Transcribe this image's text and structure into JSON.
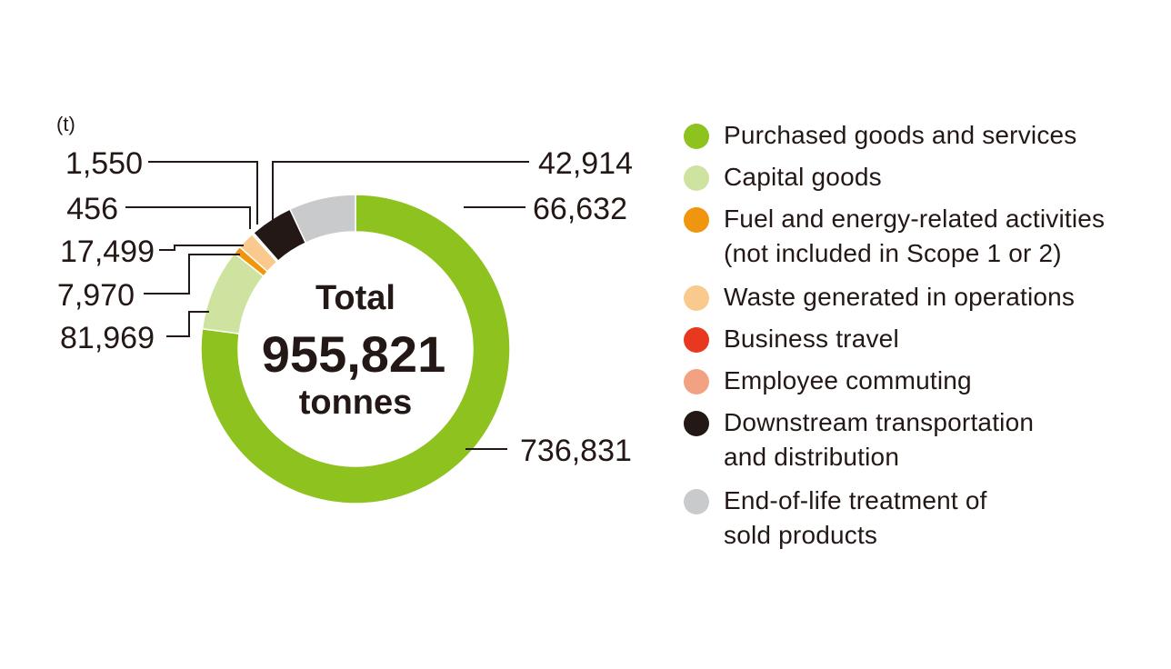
{
  "unit_label": "(t)",
  "chart_data": {
    "type": "pie",
    "donut": true,
    "center_text": {
      "line1": "Total",
      "line2": "955,821",
      "line3": "tonnes"
    },
    "total": 955821,
    "categories": [
      "Purchased goods and services",
      "Capital goods",
      "Fuel and energy-related activities\n(not included in Scope 1 or 2)",
      "Waste generated in operations",
      "Business travel",
      "Employee commuting",
      "Downstream transportation\nand distribution",
      "End-of-life treatment of\nsold products"
    ],
    "values": [
      736831,
      81969,
      7970,
      17499,
      456,
      1550,
      42914,
      66632
    ],
    "value_labels": [
      "736,831",
      "81,969",
      "7,970",
      "17,499",
      "456",
      "1,550",
      "42,914",
      "66,632"
    ],
    "colors": [
      "#8dc21f",
      "#cfe3a0",
      "#f0960e",
      "#f9c98e",
      "#e83820",
      "#f2a283",
      "#231815",
      "#c9cacb"
    ],
    "legend_position": "right"
  }
}
